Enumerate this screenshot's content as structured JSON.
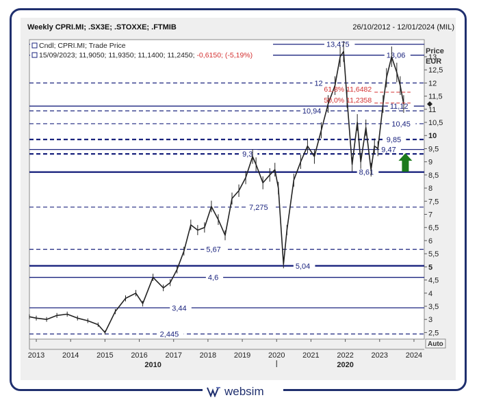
{
  "header": {
    "title": "Weekly CPRI.MI; .SX3E; .STOXXE; .FTMIB",
    "date_range": "26/10/2012 - 12/01/2024 (MIL)"
  },
  "legend": {
    "line1": "Cndl; CPRI.MI; Trade Price",
    "line2_prefix": "15/09/2023; 11,9050; 11,9350; 11,1400; 11,2450;",
    "line2_change": "-0,6150; (-5,19%)"
  },
  "axis": {
    "price_title": "Price",
    "price_unit": "EUR",
    "auto_label": "Auto"
  },
  "footer": {
    "brand": "websim"
  },
  "colors": {
    "navy": "#1a237e",
    "price": "#222222",
    "fib": "#d32f2f",
    "arrow": "#1b7a1b"
  },
  "chart_data": {
    "type": "line",
    "series": [
      {
        "x": [
          2012.8,
          2013.0,
          2013.3,
          2013.6,
          2013.9,
          2014.2,
          2014.5,
          2014.8,
          2015.0,
          2015.3,
          2015.6,
          2015.9,
          2016.1,
          2016.4,
          2016.7,
          2016.9,
          2017.1,
          2017.3,
          2017.5,
          2017.7,
          2017.9,
          2018.1,
          2018.3,
          2018.5,
          2018.7,
          2018.9,
          2019.1,
          2019.3,
          2019.4,
          2019.6,
          2019.8,
          2019.95,
          2020.05,
          2020.2,
          2020.3,
          2020.5,
          2020.7,
          2020.9,
          2021.1,
          2021.3,
          2021.5,
          2021.7,
          2021.85,
          2021.95,
          2022.05,
          2022.2,
          2022.35,
          2022.45,
          2022.6,
          2022.75,
          2022.85,
          2022.95,
          2023.1,
          2023.2,
          2023.35,
          2023.5,
          2023.6,
          2023.7
        ],
        "values": [
          3.1,
          3.05,
          3.0,
          3.15,
          3.2,
          3.05,
          2.95,
          2.8,
          2.5,
          3.3,
          3.8,
          4.0,
          3.6,
          4.6,
          4.2,
          4.4,
          4.9,
          5.6,
          6.6,
          6.4,
          6.5,
          7.3,
          6.8,
          6.2,
          7.6,
          7.9,
          8.4,
          9.2,
          8.9,
          8.2,
          8.5,
          8.7,
          8.0,
          5.1,
          6.4,
          8.3,
          9.0,
          9.6,
          9.2,
          10.2,
          11.2,
          11.9,
          13.0,
          13.2,
          11.4,
          8.9,
          10.5,
          9.0,
          10.3,
          8.7,
          9.6,
          9.5,
          11.2,
          12.2,
          13.0,
          12.4,
          11.9,
          11.2
        ]
      }
    ],
    "x_ticks": [
      "2013",
      "2014",
      "2015",
      "2016",
      "2017",
      "2018",
      "2019",
      "2020",
      "2021",
      "2022",
      "2023",
      "2024"
    ],
    "x_tick_values": [
      2013,
      2014,
      2015,
      2016,
      2017,
      2018,
      2019,
      2020,
      2021,
      2022,
      2023,
      2024
    ],
    "decade_labels": [
      {
        "label": "2010",
        "x": 2016.4
      },
      {
        "label": "2020",
        "x": 2022.0
      }
    ],
    "xlim": [
      2012.8,
      2024.3
    ],
    "y_ticks": [
      "2,5",
      "3",
      "3,5",
      "4",
      "4,5",
      "5",
      "5,5",
      "6",
      "6,5",
      "7",
      "7,5",
      "8",
      "8,5",
      "9",
      "9,5",
      "10",
      "10,5",
      "11",
      "11,5",
      "12",
      "12,5",
      "13"
    ],
    "y_tick_values": [
      2.5,
      3,
      3.5,
      4,
      4.5,
      5,
      5.5,
      6,
      6.5,
      7,
      7.5,
      8,
      8.5,
      9,
      9.5,
      10,
      10.5,
      11,
      11.5,
      12,
      12.5,
      13
    ],
    "bold_ticks": [
      "5",
      "10"
    ],
    "ylim": [
      2.25,
      13.65
    ],
    "last_price": 11.2,
    "levels": [
      {
        "label": "13,475",
        "value": 13.475,
        "style": "solid",
        "label_x": 2021.45
      },
      {
        "label": "13,06",
        "value": 13.06,
        "style": "solid",
        "label_x": 2023.2
      },
      {
        "label": "12",
        "value": 12.0,
        "style": "dash",
        "label_x": 2021.1
      },
      {
        "label": "11,12",
        "value": 11.12,
        "style": "solid",
        "label_x": 2023.3
      },
      {
        "label": "10,94",
        "value": 10.94,
        "style": "dash",
        "label_x": 2020.75
      },
      {
        "label": "10,45",
        "value": 10.45,
        "style": "dash",
        "label_x": 2023.35
      },
      {
        "label": "9,85",
        "value": 9.85,
        "style": "thickdash",
        "label_x": 2023.2
      },
      {
        "label": "9,47",
        "value": 9.47,
        "style": "solid",
        "label_x": 2023.05
      },
      {
        "label": "9,3",
        "value": 9.3,
        "style": "thickdash",
        "label_x": 2019.0
      },
      {
        "label": "8,61",
        "value": 8.61,
        "style": "thick",
        "label_x": 2022.4
      },
      {
        "label": "7,275",
        "value": 7.275,
        "style": "dash",
        "label_x": 2019.2
      },
      {
        "label": "5,67",
        "value": 5.67,
        "style": "dash",
        "label_x": 2017.95
      },
      {
        "label": "5,04",
        "value": 5.04,
        "style": "thick",
        "label_x": 2020.55
      },
      {
        "label": "4,6",
        "value": 4.6,
        "style": "solid",
        "label_x": 2018.0
      },
      {
        "label": "3,44",
        "value": 3.44,
        "style": "solid",
        "label_x": 2016.95
      },
      {
        "label": "2,445",
        "value": 2.445,
        "style": "dash",
        "label_x": 2016.6
      }
    ],
    "fib": [
      {
        "label": "61,8% 11,6482",
        "value": 11.6482
      },
      {
        "label": "50,0% 11,2358",
        "value": 11.2358
      }
    ],
    "fib_x_range": [
      2022.85,
      2023.9
    ],
    "arrow_x": 2023.75,
    "arrow_value": 8.7
  }
}
